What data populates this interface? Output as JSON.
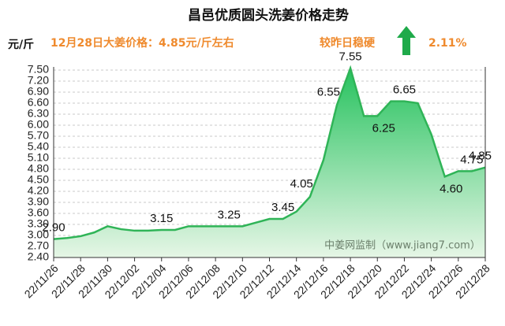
{
  "chart_data": {
    "type": "area",
    "title": "昌邑优质圆头洗姜价格走势",
    "y_label": "元/斤",
    "subtitle": "12月28日大姜价格：4.85元/斤左右",
    "change_text": "较昨日稳硬",
    "change_value": "2.11%",
    "watermark": "中姜网监制（www.jiang7.com）",
    "categories": [
      "22/11/26",
      null,
      "22/11/28",
      null,
      "22/11/30",
      null,
      "22/12/02",
      null,
      "22/12/04",
      null,
      "22/12/06",
      null,
      "22/12/08",
      null,
      "22/12/10",
      null,
      "22/12/12",
      null,
      "22/12/14",
      null,
      "22/12/16",
      null,
      "22/12/18",
      null,
      "22/12/20",
      null,
      "22/12/22",
      null,
      "22/12/24",
      null,
      "22/12/26",
      null,
      "22/12/28"
    ],
    "values": [
      2.9,
      2.93,
      2.98,
      3.08,
      3.25,
      3.17,
      3.13,
      3.13,
      3.15,
      3.15,
      3.25,
      3.25,
      3.25,
      3.25,
      3.25,
      3.35,
      3.45,
      3.45,
      3.65,
      4.05,
      5.05,
      6.55,
      7.55,
      6.25,
      6.25,
      6.65,
      6.65,
      6.6,
      5.75,
      4.6,
      4.75,
      4.75,
      4.85
    ],
    "value_labels": [
      "2.90",
      null,
      null,
      null,
      null,
      null,
      null,
      null,
      "3.15",
      null,
      null,
      null,
      null,
      "3.25",
      null,
      null,
      null,
      "3.45",
      null,
      "4.05",
      null,
      "6.55",
      "7.55",
      null,
      "6.25",
      null,
      "6.65",
      null,
      null,
      "4.60",
      null,
      "4.75",
      "4.85"
    ],
    "color": "#2fb457",
    "ylim": [
      2.4,
      7.5
    ],
    "yticks": [
      {
        "value": 2.4,
        "label": "2.40"
      },
      {
        "value": 2.7,
        "label": "2.70"
      },
      {
        "value": 3.0,
        "label": "3.00"
      },
      {
        "value": 3.3,
        "label": "3.30"
      },
      {
        "value": 3.6,
        "label": "3.60"
      },
      {
        "value": 3.9,
        "label": "3.90"
      },
      {
        "value": 4.2,
        "label": "4.20"
      },
      {
        "value": 4.5,
        "label": "4.50"
      },
      {
        "value": 4.8,
        "label": "4.80"
      },
      {
        "value": 5.1,
        "label": "5.10"
      },
      {
        "value": 5.4,
        "label": "5.40"
      },
      {
        "value": 5.7,
        "label": "5.70"
      },
      {
        "value": 6.0,
        "label": "6.00"
      },
      {
        "value": 6.3,
        "label": "6.30"
      },
      {
        "value": 6.6,
        "label": "6.60"
      },
      {
        "value": 6.9,
        "label": "6.90"
      },
      {
        "value": 7.2,
        "label": "7.20"
      },
      {
        "value": 7.5,
        "label": "7.50"
      }
    ],
    "grid": true
  }
}
